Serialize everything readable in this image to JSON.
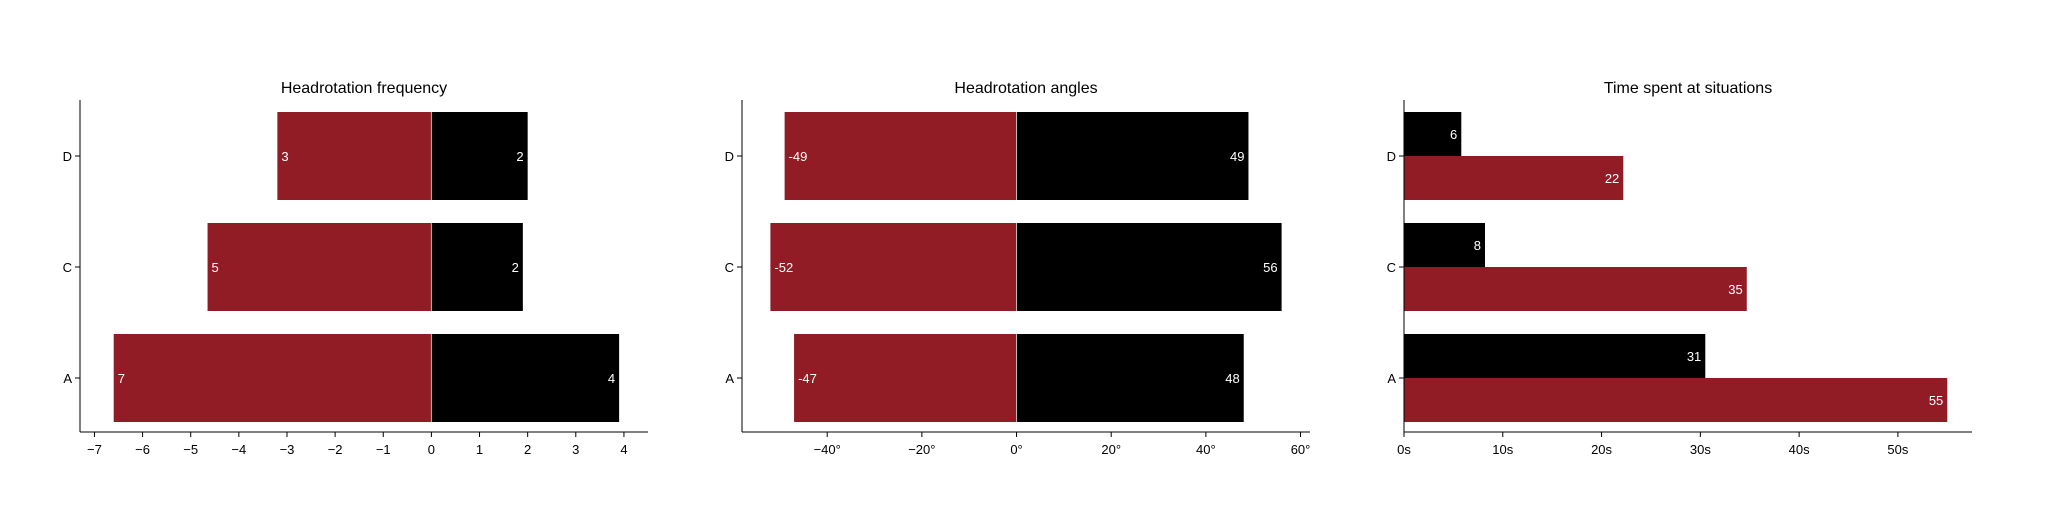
{
  "colors": {
    "left": "#921c26",
    "right": "#000000",
    "divider": "#bbbbbb",
    "label": "#ffffff"
  },
  "chart_data": [
    {
      "type": "bar",
      "orientation": "horizontal",
      "stacked": "diverging",
      "title": "Headrotation frequency",
      "categories": [
        "A",
        "C",
        "D"
      ],
      "series": [
        {
          "color": "left",
          "values": [
            -6.6,
            -4.65,
            -3.2
          ],
          "labels": [
            "7",
            "5",
            "3"
          ]
        },
        {
          "color": "right",
          "values": [
            3.9,
            1.9,
            2.0
          ],
          "labels": [
            "4",
            "2",
            "2"
          ]
        }
      ],
      "xlim": [
        -7.3,
        4.5
      ],
      "xticks": [
        -7,
        -6,
        -5,
        -4,
        -3,
        -2,
        -1,
        0,
        1,
        2,
        3,
        4
      ],
      "xtick_labels": [
        "−7",
        "−6",
        "−5",
        "−4",
        "−3",
        "−2",
        "−1",
        "0",
        "1",
        "2",
        "3",
        "4"
      ]
    },
    {
      "type": "bar",
      "orientation": "horizontal",
      "stacked": "diverging",
      "title": "Headrotation angles",
      "categories": [
        "A",
        "C",
        "D"
      ],
      "series": [
        {
          "color": "left",
          "values": [
            -47,
            -52,
            -49
          ],
          "labels": [
            "-47",
            "-52",
            "-49"
          ]
        },
        {
          "color": "right",
          "values": [
            48,
            56,
            49
          ],
          "labels": [
            "48",
            "56",
            "49"
          ]
        }
      ],
      "xlim": [
        -58,
        62
      ],
      "xticks": [
        -40,
        -20,
        0,
        20,
        40,
        60
      ],
      "xtick_labels": [
        "−40°",
        "−20°",
        "0°",
        "20°",
        "40°",
        "60°"
      ]
    },
    {
      "type": "bar",
      "orientation": "horizontal",
      "stacked": "grouped",
      "title": "Time spent at situations",
      "categories": [
        "A",
        "C",
        "D"
      ],
      "series": [
        {
          "color": "right",
          "values": [
            30.5,
            8.2,
            5.8
          ],
          "labels": [
            "31",
            "8",
            "6"
          ]
        },
        {
          "color": "left",
          "values": [
            55,
            34.7,
            22.2
          ],
          "labels": [
            "55",
            "35",
            "22"
          ]
        }
      ],
      "xlim": [
        0,
        57.5
      ],
      "xticks": [
        0,
        10,
        20,
        30,
        40,
        50
      ],
      "xtick_labels": [
        "0s",
        "10s",
        "20s",
        "30s",
        "40s",
        "50s"
      ]
    }
  ]
}
